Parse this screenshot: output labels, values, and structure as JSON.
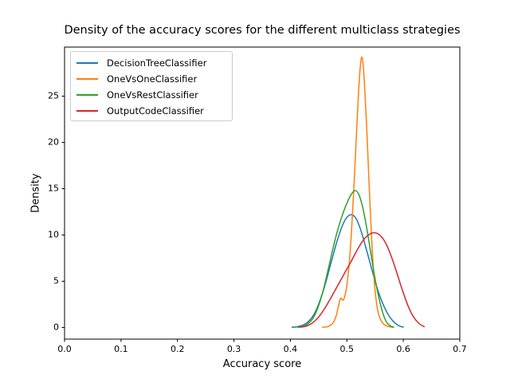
{
  "chart_data": {
    "type": "line",
    "subtype": "kde-density",
    "title": "Density of the accuracy scores for the different multiclass strategies",
    "xlabel": "Accuracy score",
    "ylabel": "Density",
    "xlim": [
      0.0,
      0.7
    ],
    "ylim": [
      -1.25,
      30.3
    ],
    "x_ticks": [
      0.0,
      0.1,
      0.2,
      0.3,
      0.4,
      0.5,
      0.6,
      0.7
    ],
    "x_tick_labels": [
      "0.0",
      "0.1",
      "0.2",
      "0.3",
      "0.4",
      "0.5",
      "0.6",
      "0.7"
    ],
    "y_ticks": [
      0,
      5,
      10,
      15,
      20,
      25
    ],
    "y_tick_labels": [
      "0",
      "5",
      "10",
      "15",
      "20",
      "25"
    ],
    "grid": false,
    "legend_position": "upper left",
    "background_color": "#ffffff",
    "axis_color": "#000000",
    "series": [
      {
        "name": "DecisionTreeClassifier",
        "color": "#1f77b4",
        "peak": {
          "x": 0.508,
          "y": 12.2
        },
        "points": [
          [
            0.403,
            0.03
          ],
          [
            0.412,
            0.09
          ],
          [
            0.422,
            0.26
          ],
          [
            0.432,
            0.65
          ],
          [
            0.442,
            1.45
          ],
          [
            0.452,
            2.85
          ],
          [
            0.462,
            4.75
          ],
          [
            0.472,
            7.0
          ],
          [
            0.482,
            9.2
          ],
          [
            0.492,
            11.0
          ],
          [
            0.5,
            11.9
          ],
          [
            0.508,
            12.2
          ],
          [
            0.516,
            11.8
          ],
          [
            0.524,
            10.65
          ],
          [
            0.532,
            9.0
          ],
          [
            0.541,
            7.0
          ],
          [
            0.55,
            5.0
          ],
          [
            0.559,
            3.3
          ],
          [
            0.568,
            2.0
          ],
          [
            0.577,
            1.05
          ],
          [
            0.586,
            0.45
          ],
          [
            0.594,
            0.15
          ],
          [
            0.6,
            0.05
          ]
        ]
      },
      {
        "name": "OneVsOneClassifier",
        "color": "#ff7f0e",
        "peak": {
          "x": 0.526,
          "y": 29.2
        },
        "points": [
          [
            0.457,
            0.02
          ],
          [
            0.464,
            0.07
          ],
          [
            0.47,
            0.2
          ],
          [
            0.476,
            0.55
          ],
          [
            0.481,
            1.25
          ],
          [
            0.485,
            2.3
          ],
          [
            0.489,
            3.15
          ],
          [
            0.493,
            2.95
          ],
          [
            0.496,
            3.3
          ],
          [
            0.5,
            4.6
          ],
          [
            0.504,
            6.8
          ],
          [
            0.508,
            10.2
          ],
          [
            0.512,
            14.6
          ],
          [
            0.516,
            19.6
          ],
          [
            0.52,
            24.6
          ],
          [
            0.523,
            27.6
          ],
          [
            0.526,
            29.2
          ],
          [
            0.529,
            28.3
          ],
          [
            0.532,
            25.4
          ],
          [
            0.536,
            20.4
          ],
          [
            0.54,
            14.6
          ],
          [
            0.544,
            9.4
          ],
          [
            0.548,
            5.4
          ],
          [
            0.552,
            2.9
          ],
          [
            0.556,
            1.5
          ],
          [
            0.561,
            0.7
          ],
          [
            0.567,
            0.28
          ],
          [
            0.574,
            0.1
          ],
          [
            0.582,
            0.03
          ]
        ]
      },
      {
        "name": "OneVsRestClassifier",
        "color": "#2ca02c",
        "peak": {
          "x": 0.515,
          "y": 14.8
        },
        "points": [
          [
            0.413,
            0.03
          ],
          [
            0.422,
            0.12
          ],
          [
            0.431,
            0.4
          ],
          [
            0.44,
            1.0
          ],
          [
            0.449,
            2.2
          ],
          [
            0.458,
            4.0
          ],
          [
            0.467,
            6.3
          ],
          [
            0.476,
            8.7
          ],
          [
            0.485,
            10.8
          ],
          [
            0.494,
            12.5
          ],
          [
            0.502,
            13.7
          ],
          [
            0.509,
            14.5
          ],
          [
            0.515,
            14.8
          ],
          [
            0.521,
            14.4
          ],
          [
            0.528,
            13.0
          ],
          [
            0.535,
            10.8
          ],
          [
            0.542,
            8.2
          ],
          [
            0.549,
            5.6
          ],
          [
            0.556,
            3.4
          ],
          [
            0.563,
            1.7
          ],
          [
            0.57,
            0.6
          ],
          [
            0.577,
            0.18
          ],
          [
            0.583,
            0.04
          ]
        ]
      },
      {
        "name": "OutputCodeClassifier",
        "color": "#d62728",
        "peak": {
          "x": 0.548,
          "y": 10.25
        },
        "points": [
          [
            0.417,
            0.03
          ],
          [
            0.428,
            0.15
          ],
          [
            0.438,
            0.45
          ],
          [
            0.448,
            1.0
          ],
          [
            0.458,
            1.8
          ],
          [
            0.468,
            2.8
          ],
          [
            0.478,
            3.9
          ],
          [
            0.488,
            5.0
          ],
          [
            0.498,
            6.1
          ],
          [
            0.508,
            7.2
          ],
          [
            0.518,
            8.35
          ],
          [
            0.528,
            9.35
          ],
          [
            0.538,
            10.0
          ],
          [
            0.548,
            10.25
          ],
          [
            0.558,
            10.0
          ],
          [
            0.568,
            9.2
          ],
          [
            0.578,
            7.8
          ],
          [
            0.588,
            6.0
          ],
          [
            0.598,
            4.1
          ],
          [
            0.608,
            2.4
          ],
          [
            0.618,
            1.15
          ],
          [
            0.628,
            0.42
          ],
          [
            0.637,
            0.1
          ]
        ]
      }
    ]
  }
}
